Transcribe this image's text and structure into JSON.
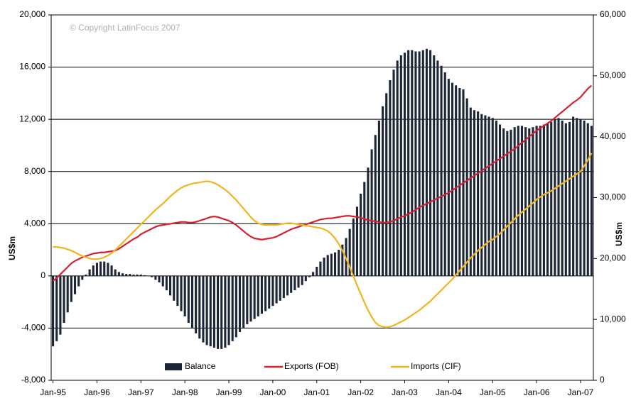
{
  "chart_data": {
    "type": "bar",
    "copyright": "© Copyright LatinFocus 2007",
    "ylabel": "US$m",
    "y2label": "US$m",
    "categories": [
      "Jan-95",
      null,
      null,
      null,
      null,
      null,
      null,
      null,
      null,
      null,
      null,
      null,
      "Jan-96",
      null,
      null,
      null,
      null,
      null,
      null,
      null,
      null,
      null,
      null,
      null,
      "Jan-97",
      null,
      null,
      null,
      null,
      null,
      null,
      null,
      null,
      null,
      null,
      null,
      "Jan-98",
      null,
      null,
      null,
      null,
      null,
      null,
      null,
      null,
      null,
      null,
      null,
      "Jan-99",
      null,
      null,
      null,
      null,
      null,
      null,
      null,
      null,
      null,
      null,
      null,
      "Jan-00",
      null,
      null,
      null,
      null,
      null,
      null,
      null,
      null,
      null,
      null,
      null,
      "Jan-01",
      null,
      null,
      null,
      null,
      null,
      null,
      null,
      null,
      null,
      null,
      null,
      "Jan-02",
      null,
      null,
      null,
      null,
      null,
      null,
      null,
      null,
      null,
      null,
      null,
      "Jan-03",
      null,
      null,
      null,
      null,
      null,
      null,
      null,
      null,
      null,
      null,
      null,
      "Jan-04",
      null,
      null,
      null,
      null,
      null,
      null,
      null,
      null,
      null,
      null,
      null,
      "Jan-05",
      null,
      null,
      null,
      null,
      null,
      null,
      null,
      null,
      null,
      null,
      null,
      "Jan-06",
      null,
      null,
      null,
      null,
      null,
      null,
      null,
      null,
      null,
      null,
      null,
      "Jan-07",
      null,
      null,
      null
    ],
    "series": [
      {
        "name": "Balance",
        "type": "bar",
        "color": "#1c2638",
        "values": [
          -5400,
          -5000,
          -4500,
          -3600,
          -2800,
          -2000,
          -1400,
          -800,
          -300,
          100,
          500,
          800,
          1000,
          1100,
          1100,
          1000,
          800,
          500,
          300,
          200,
          150,
          150,
          100,
          100,
          100,
          50,
          0,
          -100,
          -300,
          -500,
          -800,
          -1100,
          -1500,
          -1900,
          -2300,
          -2700,
          -3100,
          -3600,
          -4000,
          -4400,
          -4800,
          -5100,
          -5300,
          -5400,
          -5500,
          -5600,
          -5600,
          -5500,
          -5300,
          -5000,
          -4700,
          -4300,
          -4000,
          -3700,
          -3500,
          -3300,
          -3100,
          -2900,
          -2700,
          -2500,
          -2300,
          -2100,
          -1900,
          -1700,
          -1500,
          -1300,
          -1100,
          -900,
          -700,
          -400,
          -100,
          300,
          700,
          1100,
          1400,
          1600,
          1700,
          1800,
          2000,
          2400,
          2900,
          3600,
          4400,
          5300,
          6300,
          7200,
          8300,
          9700,
          10800,
          11900,
          13000,
          14000,
          15000,
          15800,
          16500,
          16900,
          17100,
          17300,
          17300,
          17200,
          17200,
          17300,
          17400,
          17300,
          16900,
          16500,
          16100,
          15600,
          15100,
          14800,
          14600,
          14400,
          14300,
          13600,
          12900,
          12700,
          12600,
          12400,
          12300,
          12200,
          12100,
          11900,
          11600,
          11300,
          11100,
          11200,
          11400,
          11500,
          11500,
          11400,
          11300,
          11400,
          11500,
          11500,
          11600,
          11700,
          11800,
          12000,
          12100,
          11900,
          11700,
          11800,
          12200,
          12100,
          12000,
          11900,
          11700,
          11500
        ]
      },
      {
        "name": "Exports (FOB)",
        "type": "line",
        "axis": "y2",
        "color": "#d42030",
        "values": [
          16300,
          16800,
          17400,
          18000,
          18600,
          19200,
          19600,
          19900,
          20200,
          20400,
          20600,
          20800,
          20900,
          21000,
          21000,
          21100,
          21200,
          21300,
          21600,
          22000,
          22400,
          22800,
          23200,
          23500,
          24000,
          24300,
          24600,
          24900,
          25200,
          25400,
          25500,
          25600,
          25700,
          25800,
          25900,
          26000,
          26000,
          25900,
          25900,
          26000,
          26200,
          26400,
          26600,
          26800,
          26900,
          26800,
          26600,
          26400,
          26200,
          25900,
          25500,
          25000,
          24500,
          24000,
          23600,
          23300,
          23200,
          23100,
          23200,
          23300,
          23400,
          23600,
          23900,
          24200,
          24500,
          24800,
          25000,
          25200,
          25400,
          25600,
          25800,
          26000,
          26200,
          26400,
          26500,
          26600,
          26600,
          26700,
          26800,
          26900,
          27000,
          27000,
          26900,
          26800,
          26700,
          26500,
          26300,
          26200,
          26100,
          26000,
          25900,
          25900,
          26000,
          26200,
          26500,
          26800,
          27000,
          27300,
          27600,
          28000,
          28400,
          28700,
          29000,
          29300,
          29600,
          29900,
          30200,
          30500,
          30800,
          31200,
          31600,
          32000,
          32400,
          32800,
          33200,
          33600,
          34000,
          34400,
          34800,
          35200,
          35600,
          36000,
          36400,
          36800,
          37200,
          37600,
          38000,
          38500,
          39000,
          39500,
          40000,
          40500,
          41000,
          41400,
          41800,
          42200,
          42600,
          43100,
          43600,
          44100,
          44600,
          45100,
          45600,
          46000,
          46500,
          47200,
          47900,
          48400
        ]
      },
      {
        "name": "Imports (CIF)",
        "type": "line",
        "axis": "y2",
        "color": "#f2b41e",
        "values": [
          21900,
          21900,
          21800,
          21700,
          21500,
          21300,
          21000,
          20700,
          20400,
          20200,
          20000,
          19900,
          19900,
          20000,
          20200,
          20500,
          20900,
          21400,
          22000,
          22600,
          23200,
          23800,
          24400,
          25000,
          25600,
          26200,
          26800,
          27400,
          28000,
          28500,
          29000,
          29600,
          30200,
          30700,
          31200,
          31600,
          31900,
          32100,
          32300,
          32400,
          32500,
          32600,
          32700,
          32600,
          32400,
          32100,
          31700,
          31300,
          30800,
          30200,
          29600,
          28900,
          28200,
          27500,
          26800,
          26200,
          25800,
          25600,
          25500,
          25500,
          25500,
          25500,
          25600,
          25700,
          25800,
          25800,
          25700,
          25600,
          25500,
          25400,
          25300,
          25200,
          25100,
          25000,
          24800,
          24500,
          24000,
          23300,
          22400,
          21300,
          20000,
          18600,
          17100,
          15600,
          14200,
          12800,
          11500,
          10400,
          9500,
          9000,
          8800,
          8700,
          8800,
          9000,
          9300,
          9600,
          9900,
          10300,
          10700,
          11100,
          11500,
          12000,
          12500,
          13000,
          13600,
          14200,
          14800,
          15400,
          16000,
          16600,
          17300,
          18000,
          18700,
          19400,
          20100,
          20700,
          21300,
          21800,
          22300,
          22800,
          23100,
          23600,
          24100,
          24700,
          25300,
          25900,
          26500,
          27100,
          27600,
          28100,
          28600,
          29100,
          29700,
          30100,
          30500,
          30800,
          31100,
          31500,
          31900,
          32300,
          32700,
          33100,
          33500,
          33900,
          34300,
          35200,
          36200,
          37300
        ]
      }
    ],
    "ylim": [
      -8000,
      20000
    ],
    "yticks": [
      {
        "value": -8000,
        "label": "-8,000"
      },
      {
        "value": -4000,
        "label": "-4,000"
      },
      0,
      {
        "value": 4000,
        "label": "4,000"
      },
      {
        "value": 8000,
        "label": "8,000"
      },
      {
        "value": 12000,
        "label": "12,000"
      },
      {
        "value": 16000,
        "label": "16,000"
      },
      {
        "value": 20000,
        "label": "20,000"
      }
    ],
    "y2lim": [
      0,
      60000
    ],
    "y2ticks": [
      0,
      {
        "value": 10000,
        "label": "10,000"
      },
      {
        "value": 20000,
        "label": "20,000"
      },
      {
        "value": 30000,
        "label": "30,000"
      },
      {
        "value": 40000,
        "label": "40,000"
      },
      {
        "value": 50000,
        "label": "50,000"
      },
      {
        "value": 60000,
        "label": "60,000"
      }
    ],
    "grid": true,
    "legend": "bottom"
  }
}
